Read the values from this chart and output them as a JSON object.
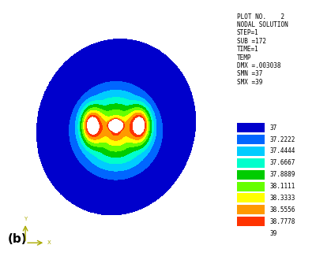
{
  "title_text": "PLOT NO.    2\nNODAL SOLUTION\nSTEP=1\nSUB =172\nTIME=1\nTEMP\nDMX =.003038\nSMN =37\nSMX =39",
  "label_b": "(b)",
  "temp_min": 37,
  "temp_max": 39,
  "levels": [
    37,
    37.2222,
    37.4444,
    37.6667,
    37.8889,
    38.1111,
    38.3333,
    38.5556,
    38.7778,
    39
  ],
  "colors": [
    "#0000CC",
    "#0066FF",
    "#00CCFF",
    "#00FFCC",
    "#00CC00",
    "#66FF00",
    "#FFFF00",
    "#FF9900",
    "#FF3300"
  ],
  "background": "#FFFFFF",
  "figsize": [
    4.19,
    3.44
  ],
  "dpi": 100
}
